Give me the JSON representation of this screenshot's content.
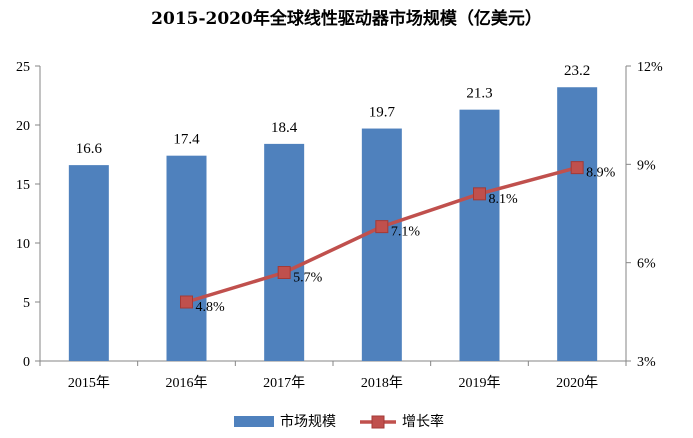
{
  "chart_data": {
    "type": "bar",
    "title": "2015-2020年全球线性驱动器市场规模（亿美元）",
    "categories": [
      "2015年",
      "2016年",
      "2017年",
      "2018年",
      "2019年",
      "2020年"
    ],
    "series": [
      {
        "name": "市场规模",
        "type": "bar",
        "axis": "left",
        "values": [
          16.6,
          17.4,
          18.4,
          19.7,
          21.3,
          23.2
        ],
        "labels": [
          "16.6",
          "17.4",
          "18.4",
          "19.7",
          "21.3",
          "23.2"
        ],
        "color": "#4F81BD"
      },
      {
        "name": "增长率",
        "type": "line",
        "axis": "right",
        "values": [
          null,
          4.8,
          5.7,
          7.1,
          8.1,
          8.9
        ],
        "labels": [
          "",
          "4.8%",
          "5.7%",
          "7.1%",
          "8.1%",
          "8.9%"
        ],
        "color": "#C0504D"
      }
    ],
    "y_left": {
      "range": [
        0,
        25
      ],
      "ticks": [
        0,
        5,
        10,
        15,
        20,
        25
      ],
      "tick_labels": [
        "0",
        "5",
        "10",
        "15",
        "20",
        "25"
      ]
    },
    "y_right": {
      "range": [
        3,
        12
      ],
      "ticks": [
        3,
        6,
        9,
        12
      ],
      "tick_labels": [
        "3%",
        "6%",
        "9%",
        "12%"
      ]
    },
    "xlabel": "",
    "ylabel": "",
    "grid": false,
    "legend": "bottom"
  }
}
